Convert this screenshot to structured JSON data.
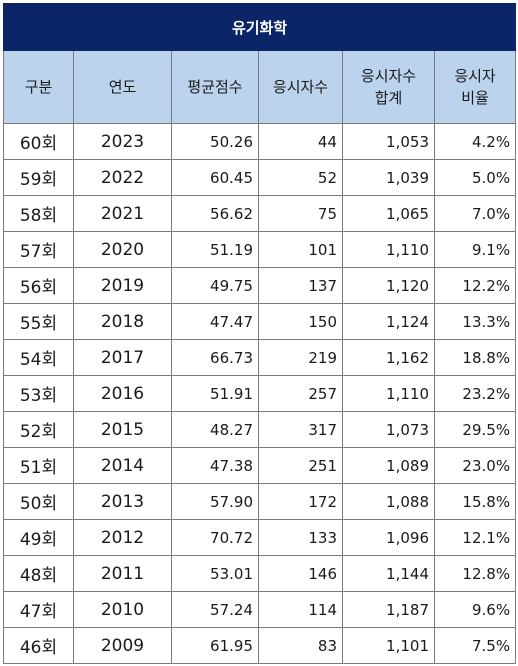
{
  "title": "유기화학",
  "headers": [
    "구분",
    "연도",
    "평균점수",
    "응시자수",
    "응시자수\n합계",
    "응시자\n비율"
  ],
  "rows": [
    {
      "round": "60회",
      "year": "2023",
      "avg": "50.26",
      "count": "44",
      "total": "1,053",
      "ratio": "4.2%"
    },
    {
      "round": "59회",
      "year": "2022",
      "avg": "60.45",
      "count": "52",
      "total": "1,039",
      "ratio": "5.0%"
    },
    {
      "round": "58회",
      "year": "2021",
      "avg": "56.62",
      "count": "75",
      "total": "1,065",
      "ratio": "7.0%"
    },
    {
      "round": "57회",
      "year": "2020",
      "avg": "51.19",
      "count": "101",
      "total": "1,110",
      "ratio": "9.1%"
    },
    {
      "round": "56회",
      "year": "2019",
      "avg": "49.75",
      "count": "137",
      "total": "1,120",
      "ratio": "12.2%"
    },
    {
      "round": "55회",
      "year": "2018",
      "avg": "47.47",
      "count": "150",
      "total": "1,124",
      "ratio": "13.3%"
    },
    {
      "round": "54회",
      "year": "2017",
      "avg": "66.73",
      "count": "219",
      "total": "1,162",
      "ratio": "18.8%"
    },
    {
      "round": "53회",
      "year": "2016",
      "avg": "51.91",
      "count": "257",
      "total": "1,110",
      "ratio": "23.2%"
    },
    {
      "round": "52회",
      "year": "2015",
      "avg": "48.27",
      "count": "317",
      "total": "1,073",
      "ratio": "29.5%"
    },
    {
      "round": "51회",
      "year": "2014",
      "avg": "47.38",
      "count": "251",
      "total": "1,089",
      "ratio": "23.0%"
    },
    {
      "round": "50회",
      "year": "2013",
      "avg": "57.90",
      "count": "172",
      "total": "1,088",
      "ratio": "15.8%"
    },
    {
      "round": "49회",
      "year": "2012",
      "avg": "70.72",
      "count": "133",
      "total": "1,096",
      "ratio": "12.1%"
    },
    {
      "round": "48회",
      "year": "2011",
      "avg": "53.01",
      "count": "146",
      "total": "1,144",
      "ratio": "12.8%"
    },
    {
      "round": "47회",
      "year": "2010",
      "avg": "57.24",
      "count": "114",
      "total": "1,187",
      "ratio": "9.6%"
    },
    {
      "round": "46회",
      "year": "2009",
      "avg": "61.95",
      "count": "83",
      "total": "1,101",
      "ratio": "7.5%"
    }
  ],
  "colors": {
    "title_bg": "#0c2468",
    "header_bg": "#bcd3ee",
    "border": "#7a7a7a"
  }
}
